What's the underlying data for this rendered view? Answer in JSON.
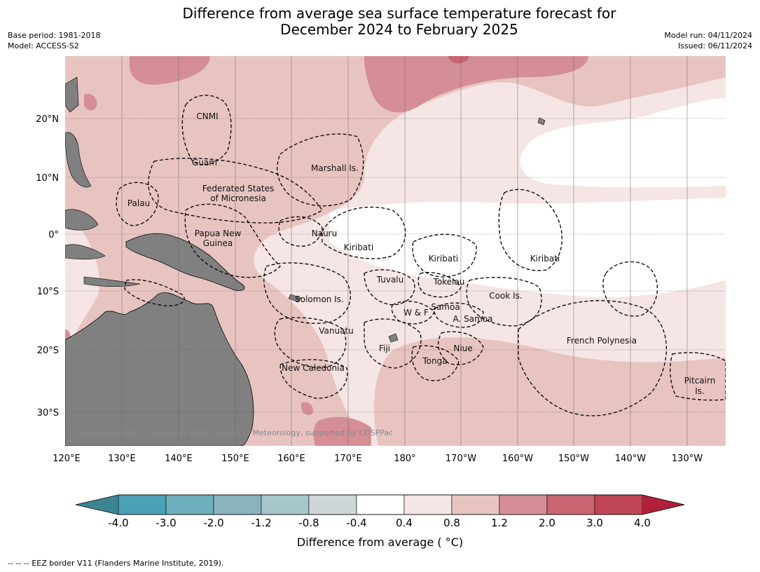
{
  "title": "Difference from average sea surface temperature forecast for\nDecember 2024 to February 2025",
  "meta_left": {
    "base_period": "Base period: 1981-2018",
    "model": "Model: ACCESS-S2"
  },
  "meta_right": {
    "model_run": "Model run: 04/11/2024",
    "issued": "Issued: 06/11/2024"
  },
  "lat_labels": [
    "20°N",
    "10°N",
    "0°",
    "10°S",
    "20°S",
    "30°S"
  ],
  "lon_labels": [
    "120°E",
    "130°E",
    "140°E",
    "150°E",
    "160°E",
    "170°E",
    "180°",
    "170°W",
    "160°W",
    "150°W",
    "140°W",
    "130°W"
  ],
  "regions": [
    "CNMI",
    "Guam",
    "Marshall Is.",
    "Federated States",
    "of Micronesia",
    "Palau",
    "Papua New",
    "Guinea",
    "Nauru",
    "Kiribati",
    "Kiribati",
    "Kiribati",
    "Tuvalu",
    "Tokelau",
    "Solomon Is.",
    "Samoa",
    "W & F",
    "A. Samoa",
    "Cook Is.",
    "Vanuatu",
    "Fiji",
    "Niue",
    "Tonga",
    "French Polynesia",
    "New Caledonia",
    "Pitcairn",
    "Is."
  ],
  "copyright": "© Commonwealth of Australia 2024, Bureau of Meteorology, supported by COSPPac",
  "colorbar": {
    "ticks": [
      "-4.0",
      "-3.0",
      "-2.0",
      "-1.2",
      "-0.8",
      "-0.4",
      "0.4",
      "0.8",
      "1.2",
      "2.0",
      "3.0",
      "4.0"
    ],
    "colors": [
      "#3d8492",
      "#4ba1b5",
      "#6eafbe",
      "#89b3bf",
      "#a7c6cb",
      "#cfd6d8",
      "#ffffff",
      "#f5e5e4",
      "#e8c4c1",
      "#d58e96",
      "#c86570",
      "#bf4556",
      "#b1203b"
    ],
    "label": "Difference from average ( °C)"
  },
  "footnote": "--  --  -- EEZ border V11 (Flanders Marine Institute, 2019)."
}
